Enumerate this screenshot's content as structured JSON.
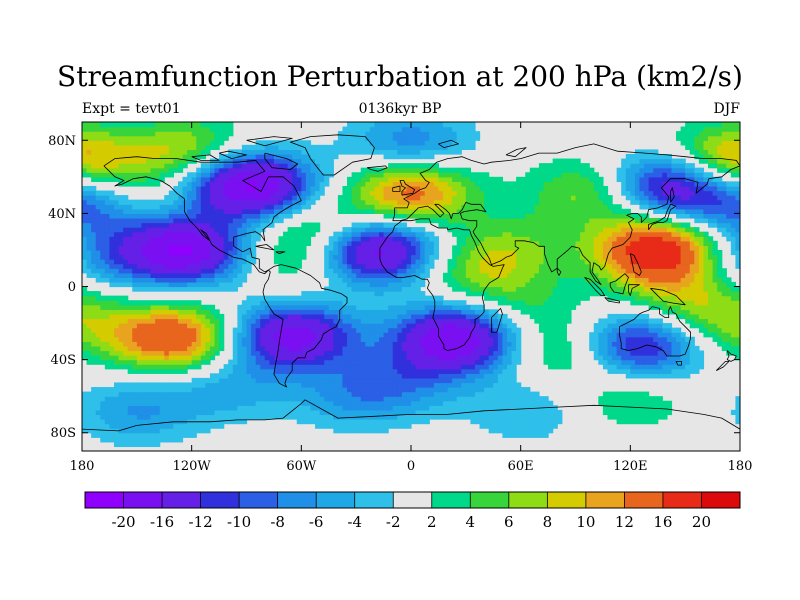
{
  "title": "Streamfunction Perturbation at 200 hPa (km2/s)",
  "subtitle_left": "Expt = tevt01",
  "subtitle_center": "0136kyr BP",
  "subtitle_right": "DJF",
  "chart_data": {
    "type": "heatmap",
    "projection": "cylindrical-equidistant",
    "variable": "Streamfunction perturbation",
    "level": "200 hPa",
    "units": "km2/s",
    "xlim": [
      -180,
      180
    ],
    "ylim": [
      -90,
      90
    ],
    "x_ticks": [
      {
        "value": -180,
        "label": "180"
      },
      {
        "value": -120,
        "label": "120W"
      },
      {
        "value": -60,
        "label": "60W"
      },
      {
        "value": 0,
        "label": "0"
      },
      {
        "value": 60,
        "label": "60E"
      },
      {
        "value": 120,
        "label": "120E"
      },
      {
        "value": 180,
        "label": "180"
      }
    ],
    "y_ticks": [
      {
        "value": 80,
        "label": "80N"
      },
      {
        "value": 40,
        "label": "40N"
      },
      {
        "value": 0,
        "label": "0"
      },
      {
        "value": -40,
        "label": "40S"
      },
      {
        "value": -80,
        "label": "80S"
      }
    ],
    "colorbar": {
      "labels": [
        "-20",
        "-16",
        "-12",
        "-10",
        "-8",
        "-6",
        "-4",
        "-2",
        "2",
        "4",
        "6",
        "8",
        "10",
        "12",
        "16",
        "20"
      ],
      "colors": [
        "#8f00ff",
        "#7a10f2",
        "#6420e6",
        "#3030dc",
        "#2a5fe6",
        "#1f8fe8",
        "#20a8e6",
        "#2fc0ea",
        "#e6e6e6",
        "#00d88a",
        "#38d43c",
        "#8edc16",
        "#d4cc00",
        "#e8a41e",
        "#e8651e",
        "#e82a18",
        "#dc0a0a"
      ]
    },
    "features": [
      {
        "lon": -85,
        "lat": 55,
        "value": -18
      },
      {
        "lon": -125,
        "lat": 20,
        "value": -20
      },
      {
        "lon": -130,
        "lat": -28,
        "value": 16
      },
      {
        "lon": -65,
        "lat": -27,
        "value": -18
      },
      {
        "lon": -20,
        "lat": 20,
        "value": -20
      },
      {
        "lon": 25,
        "lat": -28,
        "value": -20
      },
      {
        "lon": 0,
        "lat": 52,
        "value": 14
      },
      {
        "lon": 135,
        "lat": 20,
        "value": 20
      },
      {
        "lon": 125,
        "lat": -32,
        "value": -14
      },
      {
        "lon": 140,
        "lat": 55,
        "value": -16
      },
      {
        "lon": 100,
        "lat": 52,
        "value": 8
      },
      {
        "lon": -120,
        "lat": 72,
        "value": 12
      },
      {
        "lon": 85,
        "lat": -35,
        "value": 6
      },
      {
        "lon": 60,
        "lat": -12,
        "value": 4
      },
      {
        "lon": 120,
        "lat": -62,
        "value": 4
      },
      {
        "lon": -175,
        "lat": 45,
        "value": -10
      },
      {
        "lon": -175,
        "lat": 15,
        "value": -6
      },
      {
        "lon": 175,
        "lat": -20,
        "value": 6
      },
      {
        "lon": -150,
        "lat": -68,
        "value": -6
      },
      {
        "lon": 65,
        "lat": -68,
        "value": -4
      },
      {
        "lon": 175,
        "lat": 70,
        "value": 12
      },
      {
        "lon": 35,
        "lat": 8,
        "value": 6
      },
      {
        "lon": 55,
        "lat": 22,
        "value": 5
      },
      {
        "lon": -50,
        "lat": 30,
        "value": 8
      },
      {
        "lon": -108,
        "lat": 62,
        "value": -8
      },
      {
        "lon": 0,
        "lat": 78,
        "value": -8
      },
      {
        "lon": -150,
        "lat": 50,
        "value": 5
      },
      {
        "lon": -60,
        "lat": 10,
        "value": 4
      },
      {
        "lon": -100,
        "lat": -55,
        "value": -5
      },
      {
        "lon": -30,
        "lat": -60,
        "value": -6
      },
      {
        "lon": 0,
        "lat": -50,
        "value": -5
      },
      {
        "lon": 150,
        "lat": -5,
        "value": 6
      }
    ]
  }
}
